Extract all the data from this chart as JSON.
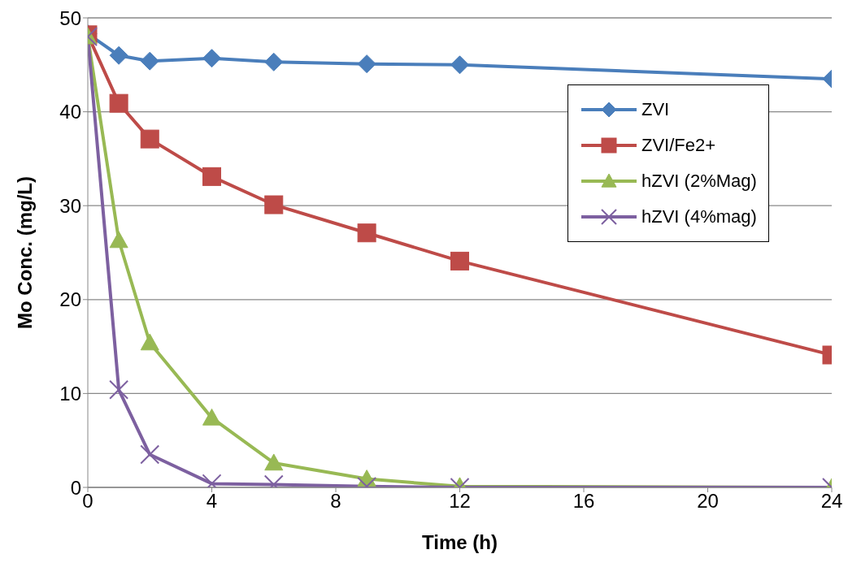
{
  "chart_data": {
    "type": "line",
    "xlabel": "Time (h)",
    "ylabel": "Mo Conc. (mg/L)",
    "x": [
      0,
      1,
      2,
      4,
      6,
      9,
      12,
      24
    ],
    "xlim": [
      0,
      24
    ],
    "xticks": [
      0,
      4,
      8,
      12,
      16,
      20,
      24
    ],
    "ylim": [
      0,
      50
    ],
    "yticks": [
      0,
      10,
      20,
      30,
      40,
      50
    ],
    "grid": "y",
    "legend": "top right",
    "series": [
      {
        "name": "ZVI",
        "color": "#4a7ebb",
        "marker": "diamond",
        "values": [
          48.3,
          46.0,
          45.4,
          45.7,
          45.3,
          45.1,
          45.0,
          43.5
        ]
      },
      {
        "name": "ZVI/Fe2+",
        "color": "#be4b48",
        "marker": "square",
        "values": [
          48.2,
          40.9,
          37.1,
          33.1,
          30.1,
          27.1,
          24.1,
          14.1
        ]
      },
      {
        "name": "hZVI (2%Mag)",
        "color": "#98b954",
        "marker": "triangle",
        "values": [
          48.0,
          26.3,
          15.4,
          7.4,
          2.6,
          0.9,
          0.1,
          0.0
        ]
      },
      {
        "name": "hZVI (4%mag)",
        "color": "#7d60a0",
        "marker": "cross",
        "values": [
          48.0,
          10.4,
          3.5,
          0.4,
          0.3,
          0.1,
          0.0,
          0.0
        ]
      }
    ]
  }
}
